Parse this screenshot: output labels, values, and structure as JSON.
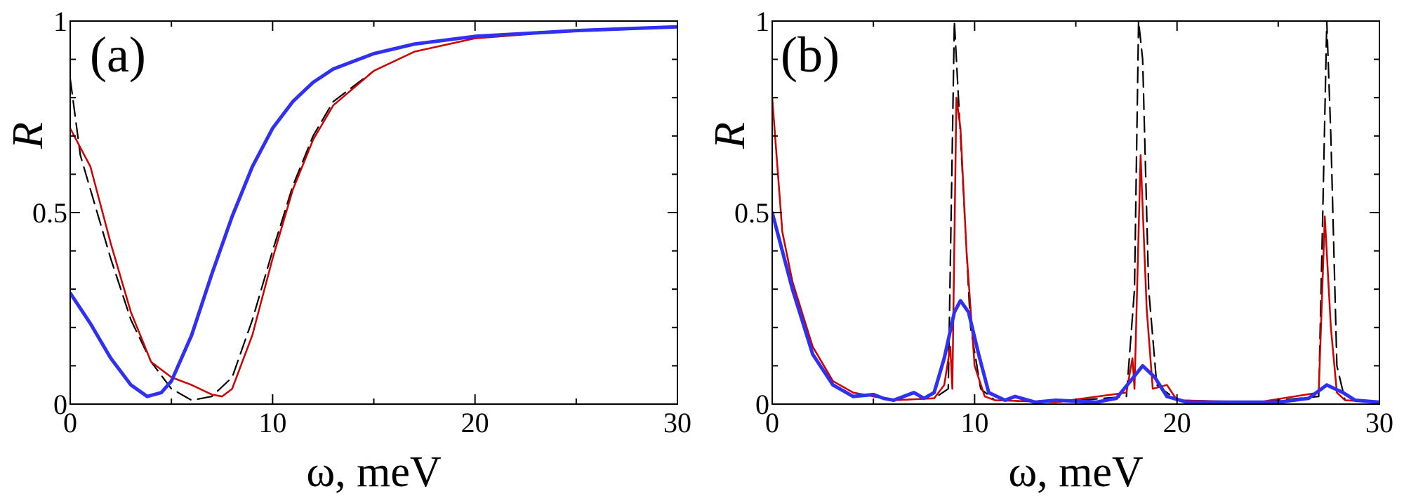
{
  "chart_data": [
    {
      "type": "line",
      "panel_label": "(a)",
      "xlabel": "ω, meV",
      "ylabel": "R",
      "xlim": [
        0,
        30
      ],
      "ylim": [
        0,
        1
      ],
      "xticks": [
        "0",
        "10",
        "20",
        "30"
      ],
      "yticks": [
        "0",
        "0.5",
        "1"
      ],
      "grid": false,
      "series": [
        {
          "style": "dashed",
          "color": "#000000",
          "points": [
            [
              0,
              0.85
            ],
            [
              0.5,
              0.65
            ],
            [
              1,
              0.56
            ],
            [
              2,
              0.38
            ],
            [
              3,
              0.22
            ],
            [
              4,
              0.11
            ],
            [
              5,
              0.04
            ],
            [
              6,
              0.01
            ],
            [
              7,
              0.02
            ],
            [
              8,
              0.07
            ],
            [
              9,
              0.22
            ],
            [
              10,
              0.4
            ],
            [
              11,
              0.57
            ],
            [
              12,
              0.7
            ],
            [
              13,
              0.79
            ],
            [
              15,
              0.87
            ],
            [
              17,
              0.92
            ],
            [
              20,
              0.955
            ],
            [
              25,
              0.975
            ],
            [
              30,
              0.985
            ]
          ]
        },
        {
          "style": "solid",
          "color": "#d00000",
          "points": [
            [
              0,
              0.72
            ],
            [
              1,
              0.62
            ],
            [
              2,
              0.42
            ],
            [
              3,
              0.24
            ],
            [
              4,
              0.11
            ],
            [
              5,
              0.07
            ],
            [
              6,
              0.05
            ],
            [
              7,
              0.025
            ],
            [
              7.5,
              0.02
            ],
            [
              8,
              0.04
            ],
            [
              9,
              0.18
            ],
            [
              10,
              0.38
            ],
            [
              11,
              0.56
            ],
            [
              12,
              0.69
            ],
            [
              13,
              0.78
            ],
            [
              15,
              0.87
            ],
            [
              17,
              0.92
            ],
            [
              20,
              0.955
            ],
            [
              25,
              0.975
            ],
            [
              30,
              0.985
            ]
          ]
        },
        {
          "style": "solid",
          "color": "#3030f0",
          "points": [
            [
              0,
              0.29
            ],
            [
              1,
              0.21
            ],
            [
              2,
              0.12
            ],
            [
              3,
              0.05
            ],
            [
              3.8,
              0.02
            ],
            [
              4.5,
              0.03
            ],
            [
              5,
              0.06
            ],
            [
              6,
              0.18
            ],
            [
              7,
              0.34
            ],
            [
              8,
              0.49
            ],
            [
              9,
              0.62
            ],
            [
              10,
              0.72
            ],
            [
              11,
              0.79
            ],
            [
              12,
              0.84
            ],
            [
              13,
              0.875
            ],
            [
              15,
              0.915
            ],
            [
              17,
              0.94
            ],
            [
              20,
              0.96
            ],
            [
              25,
              0.975
            ],
            [
              30,
              0.985
            ]
          ]
        }
      ]
    },
    {
      "type": "line",
      "panel_label": "(b)",
      "xlabel": "ω, meV",
      "ylabel": "R",
      "xlim": [
        0,
        30
      ],
      "ylim": [
        0,
        1
      ],
      "xticks": [
        "0",
        "10",
        "20",
        "30"
      ],
      "yticks": [
        "0",
        "0.5",
        "1"
      ],
      "grid": false,
      "series": [
        {
          "style": "dashed",
          "color": "#000000",
          "points": [
            [
              0,
              0.8
            ],
            [
              0.5,
              0.45
            ],
            [
              1,
              0.32
            ],
            [
              2,
              0.15
            ],
            [
              3,
              0.06
            ],
            [
              4,
              0.03
            ],
            [
              6,
              0.01
            ],
            [
              8,
              0.015
            ],
            [
              8.7,
              0.04
            ],
            [
              9.0,
              1.0
            ],
            [
              9.2,
              0.8
            ],
            [
              9.5,
              0.5
            ],
            [
              9.8,
              0.2
            ],
            [
              10.3,
              0.04
            ],
            [
              11,
              0.01
            ],
            [
              14,
              0.005
            ],
            [
              17.5,
              0.02
            ],
            [
              17.9,
              0.3
            ],
            [
              18.1,
              1.0
            ],
            [
              18.3,
              0.9
            ],
            [
              18.6,
              0.3
            ],
            [
              19,
              0.05
            ],
            [
              20,
              0.01
            ],
            [
              24,
              0.005
            ],
            [
              27,
              0.02
            ],
            [
              27.2,
              0.5
            ],
            [
              27.4,
              1.0
            ],
            [
              27.6,
              0.7
            ],
            [
              27.9,
              0.1
            ],
            [
              28.3,
              0.01
            ],
            [
              30,
              0.005
            ]
          ]
        },
        {
          "style": "solid",
          "color": "#d00000",
          "points": [
            [
              0,
              0.8
            ],
            [
              0.5,
              0.45
            ],
            [
              1,
              0.32
            ],
            [
              2,
              0.15
            ],
            [
              3,
              0.06
            ],
            [
              4,
              0.03
            ],
            [
              6,
              0.01
            ],
            [
              8,
              0.015
            ],
            [
              8.5,
              0.05
            ],
            [
              8.8,
              0.15
            ],
            [
              8.9,
              0.04
            ],
            [
              9.1,
              0.8
            ],
            [
              9.3,
              0.72
            ],
            [
              9.6,
              0.4
            ],
            [
              10,
              0.1
            ],
            [
              10.5,
              0.02
            ],
            [
              11,
              0.01
            ],
            [
              14,
              0.005
            ],
            [
              17.5,
              0.03
            ],
            [
              17.8,
              0.12
            ],
            [
              17.9,
              0.04
            ],
            [
              18.2,
              0.65
            ],
            [
              18.5,
              0.25
            ],
            [
              18.8,
              0.04
            ],
            [
              19.5,
              0.05
            ],
            [
              20,
              0.01
            ],
            [
              24,
              0.005
            ],
            [
              27,
              0.03
            ],
            [
              27.3,
              0.49
            ],
            [
              27.6,
              0.2
            ],
            [
              27.9,
              0.03
            ],
            [
              28.3,
              0.01
            ],
            [
              30,
              0.005
            ]
          ]
        },
        {
          "style": "solid",
          "color": "#3030f0",
          "points": [
            [
              0,
              0.5
            ],
            [
              0.5,
              0.4
            ],
            [
              1,
              0.3
            ],
            [
              2,
              0.13
            ],
            [
              3,
              0.05
            ],
            [
              4,
              0.02
            ],
            [
              5,
              0.025
            ],
            [
              5.5,
              0.015
            ],
            [
              6,
              0.01
            ],
            [
              7,
              0.03
            ],
            [
              7.5,
              0.015
            ],
            [
              8,
              0.03
            ],
            [
              8.5,
              0.12
            ],
            [
              9.0,
              0.24
            ],
            [
              9.3,
              0.27
            ],
            [
              9.7,
              0.24
            ],
            [
              10.2,
              0.13
            ],
            [
              10.7,
              0.03
            ],
            [
              11.5,
              0.01
            ],
            [
              12,
              0.02
            ],
            [
              13,
              0.005
            ],
            [
              14,
              0.01
            ],
            [
              16,
              0.005
            ],
            [
              17,
              0.015
            ],
            [
              17.7,
              0.06
            ],
            [
              18.3,
              0.1
            ],
            [
              18.9,
              0.07
            ],
            [
              19.5,
              0.02
            ],
            [
              20.5,
              0.005
            ],
            [
              22,
              0.005
            ],
            [
              25,
              0.005
            ],
            [
              26.5,
              0.015
            ],
            [
              27.4,
              0.05
            ],
            [
              28.2,
              0.03
            ],
            [
              28.8,
              0.01
            ],
            [
              30,
              0.005
            ]
          ]
        }
      ]
    }
  ]
}
